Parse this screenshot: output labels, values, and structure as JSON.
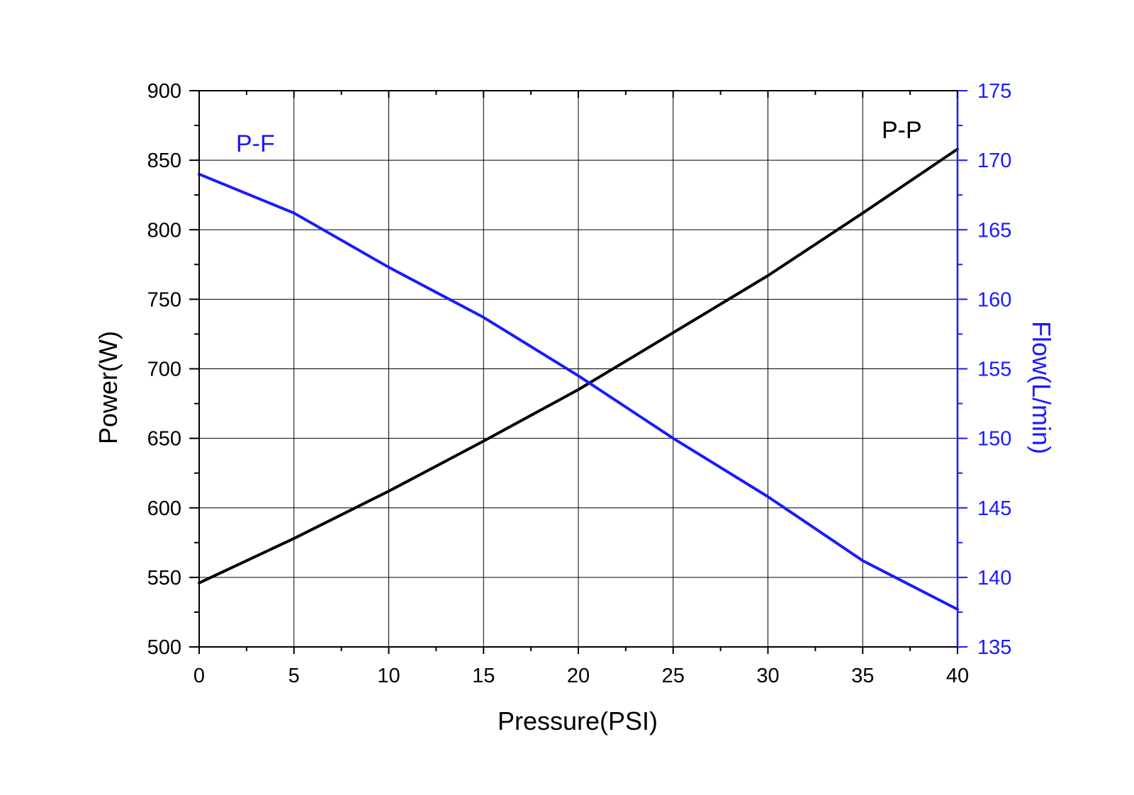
{
  "chart_data": {
    "type": "line",
    "xlabel": "Pressure(PSI)",
    "ylabel_left": "Power(W)",
    "ylabel_right": "Flow(L/min)",
    "xlim": [
      0,
      40
    ],
    "ylim_left": [
      500,
      900
    ],
    "ylim_right": [
      135,
      175
    ],
    "x_ticks": [
      0,
      5,
      10,
      15,
      20,
      25,
      30,
      35,
      40
    ],
    "y_left_ticks": [
      500,
      550,
      600,
      650,
      700,
      750,
      800,
      850,
      900
    ],
    "y_right_ticks": [
      135,
      140,
      145,
      150,
      155,
      160,
      165,
      170,
      175
    ],
    "grid": true,
    "series": [
      {
        "name": "P-P",
        "axis": "left",
        "color": "#000000",
        "x": [
          0,
          5,
          10,
          15,
          20,
          25,
          30,
          35,
          40
        ],
        "values": [
          546,
          578,
          612,
          648,
          685,
          726,
          767,
          812,
          858
        ]
      },
      {
        "name": "P-F",
        "axis": "right",
        "color": "#1a1aff",
        "x": [
          0,
          5,
          10,
          15,
          20,
          25,
          30,
          35,
          40
        ],
        "values": [
          169.0,
          166.2,
          162.3,
          158.7,
          154.5,
          150.0,
          145.8,
          141.2,
          137.7
        ]
      }
    ],
    "annotations": [
      {
        "text": "P-F",
        "color": "#1a1aff"
      },
      {
        "text": "P-P",
        "color": "#000000"
      }
    ]
  }
}
